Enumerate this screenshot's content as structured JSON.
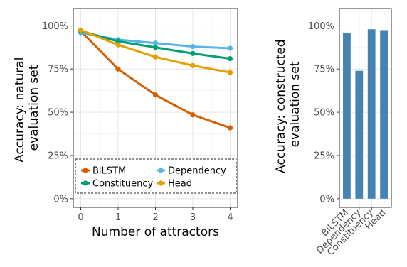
{
  "chart_data": [
    {
      "type": "line",
      "xlabel": "Number of attractors",
      "ylabel_lines": [
        "Accuracy: natural",
        "evaluation set"
      ],
      "x": [
        0,
        1,
        2,
        3,
        4
      ],
      "xlim": [
        -0.2,
        4.2
      ],
      "ylim": [
        -0.05,
        1.1
      ],
      "yticks": [
        0,
        0.25,
        0.5,
        0.75,
        1.0
      ],
      "ytick_labels": [
        "0%",
        "25%",
        "50%",
        "75%",
        "100%"
      ],
      "xtick_labels": [
        "0",
        "1",
        "2",
        "3",
        "4"
      ],
      "grid": true,
      "legend_position": "bottom, inside plot (dashed box)",
      "series": [
        {
          "name": "BiLSTM",
          "color": "#D55E00",
          "values": [
            0.97,
            0.75,
            0.6,
            0.485,
            0.41
          ]
        },
        {
          "name": "Dependency",
          "color": "#56B4E9",
          "values": [
            0.96,
            0.92,
            0.9,
            0.88,
            0.87
          ]
        },
        {
          "name": "Constituency",
          "color": "#009E73",
          "values": [
            0.97,
            0.91,
            0.875,
            0.84,
            0.81
          ]
        },
        {
          "name": "Head",
          "color": "#E69F00",
          "values": [
            0.975,
            0.89,
            0.82,
            0.77,
            0.73
          ]
        }
      ],
      "legend_order": [
        "BiLSTM",
        "Dependency",
        "Constituency",
        "Head"
      ]
    },
    {
      "type": "bar",
      "ylabel_lines": [
        "Accuracy: constructed",
        "evaluation set"
      ],
      "categories": [
        "BiLSTM",
        "Dependency",
        "Constituency",
        "Head"
      ],
      "values": [
        0.96,
        0.74,
        0.98,
        0.975
      ],
      "bar_color": "#4682B4",
      "ylim": [
        -0.05,
        1.1
      ],
      "yticks": [
        0,
        0.25,
        0.5,
        0.75,
        1.0
      ],
      "ytick_labels": [
        "0%",
        "25%",
        "50%",
        "75%",
        "100%"
      ],
      "grid": true
    }
  ]
}
